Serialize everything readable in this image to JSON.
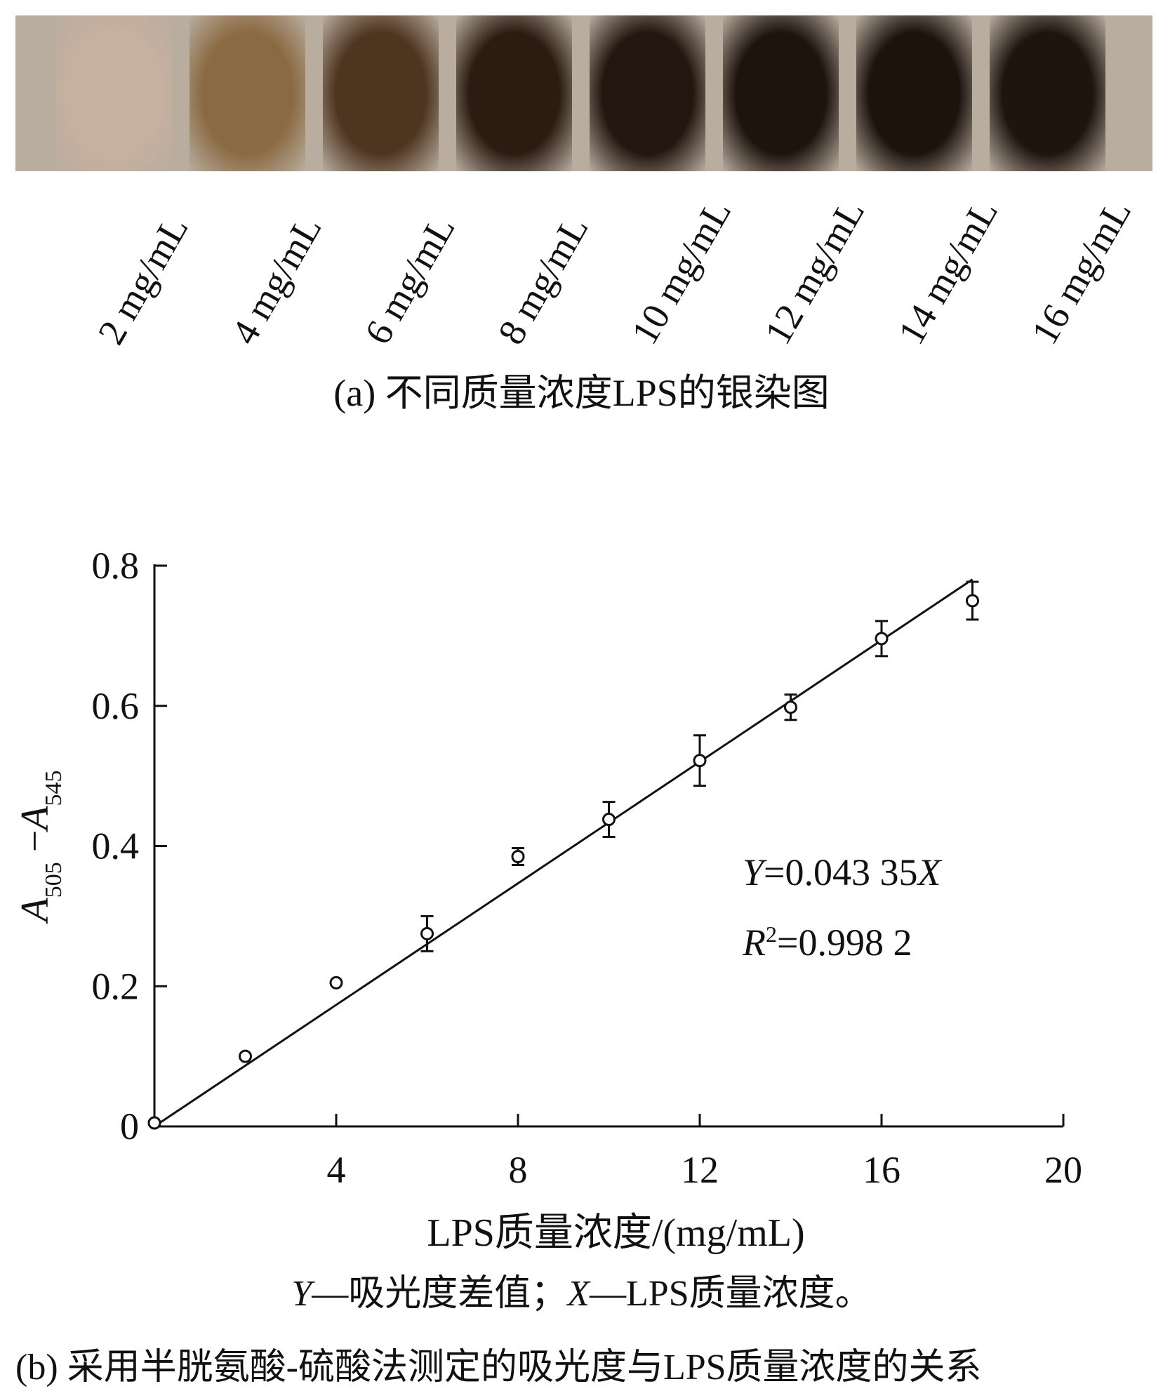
{
  "panel_a": {
    "lanes": [
      {
        "label": "2 mg/mL",
        "color": "#c7b09f"
      },
      {
        "label": "4 mg/mL",
        "color": "#8a6a42"
      },
      {
        "label": "6 mg/mL",
        "color": "#4e3520"
      },
      {
        "label": "8 mg/mL",
        "color": "#2b1c12"
      },
      {
        "label": "10 mg/mL",
        "color": "#22160f"
      },
      {
        "label": "12 mg/mL",
        "color": "#1e140e"
      },
      {
        "label": "14 mg/mL",
        "color": "#1c130d"
      },
      {
        "label": "16 mg/mL",
        "color": "#1f150f"
      }
    ],
    "caption": "(a) 不同质量浓度LPS的银染图"
  },
  "chart_data": {
    "type": "scatter",
    "xlabel": "LPS质量浓度/(mg/mL)",
    "ylabel": "A505 −A545",
    "ylabel_parts": {
      "a1": "A",
      "s1": "505",
      "minus": "−",
      "a2": "A",
      "s2": "545"
    },
    "xlim": [
      0,
      20
    ],
    "ylim": [
      0,
      0.8
    ],
    "xticks": [
      4,
      8,
      12,
      16,
      20
    ],
    "yticks": [
      0,
      0.2,
      0.4,
      0.6,
      0.8
    ],
    "ytick_labels": [
      "0",
      "0.2",
      "0.4",
      "0.6",
      "0.8"
    ],
    "points": [
      {
        "x": 0,
        "y": 0.005,
        "err": 0
      },
      {
        "x": 2,
        "y": 0.1,
        "err": 0
      },
      {
        "x": 4,
        "y": 0.205,
        "err": 0
      },
      {
        "x": 6,
        "y": 0.275,
        "err": 0.025
      },
      {
        "x": 8,
        "y": 0.385,
        "err": 0.012
      },
      {
        "x": 10,
        "y": 0.438,
        "err": 0.025
      },
      {
        "x": 12,
        "y": 0.522,
        "err": 0.036
      },
      {
        "x": 14,
        "y": 0.598,
        "err": 0.018
      },
      {
        "x": 16,
        "y": 0.696,
        "err": 0.025
      },
      {
        "x": 18,
        "y": 0.75,
        "err": 0.027
      }
    ],
    "fit": {
      "slope": 0.04335,
      "x_range": [
        0,
        18
      ]
    },
    "equation": {
      "y_var": "Y",
      "eq_text": "=0.043 35",
      "x_var": "X"
    },
    "r2": {
      "r_var": "R",
      "sup": "2",
      "val": "=0.998 2"
    },
    "grid": false
  },
  "panel_b": {
    "note": {
      "y_var": "Y",
      "y_text": "—吸光度差值；",
      "x_var": "X",
      "x_text": "—LPS质量浓度。"
    },
    "caption": "(b) 采用半胱氨酸-硫酸法测定的吸光度与LPS质量浓度的关系"
  }
}
